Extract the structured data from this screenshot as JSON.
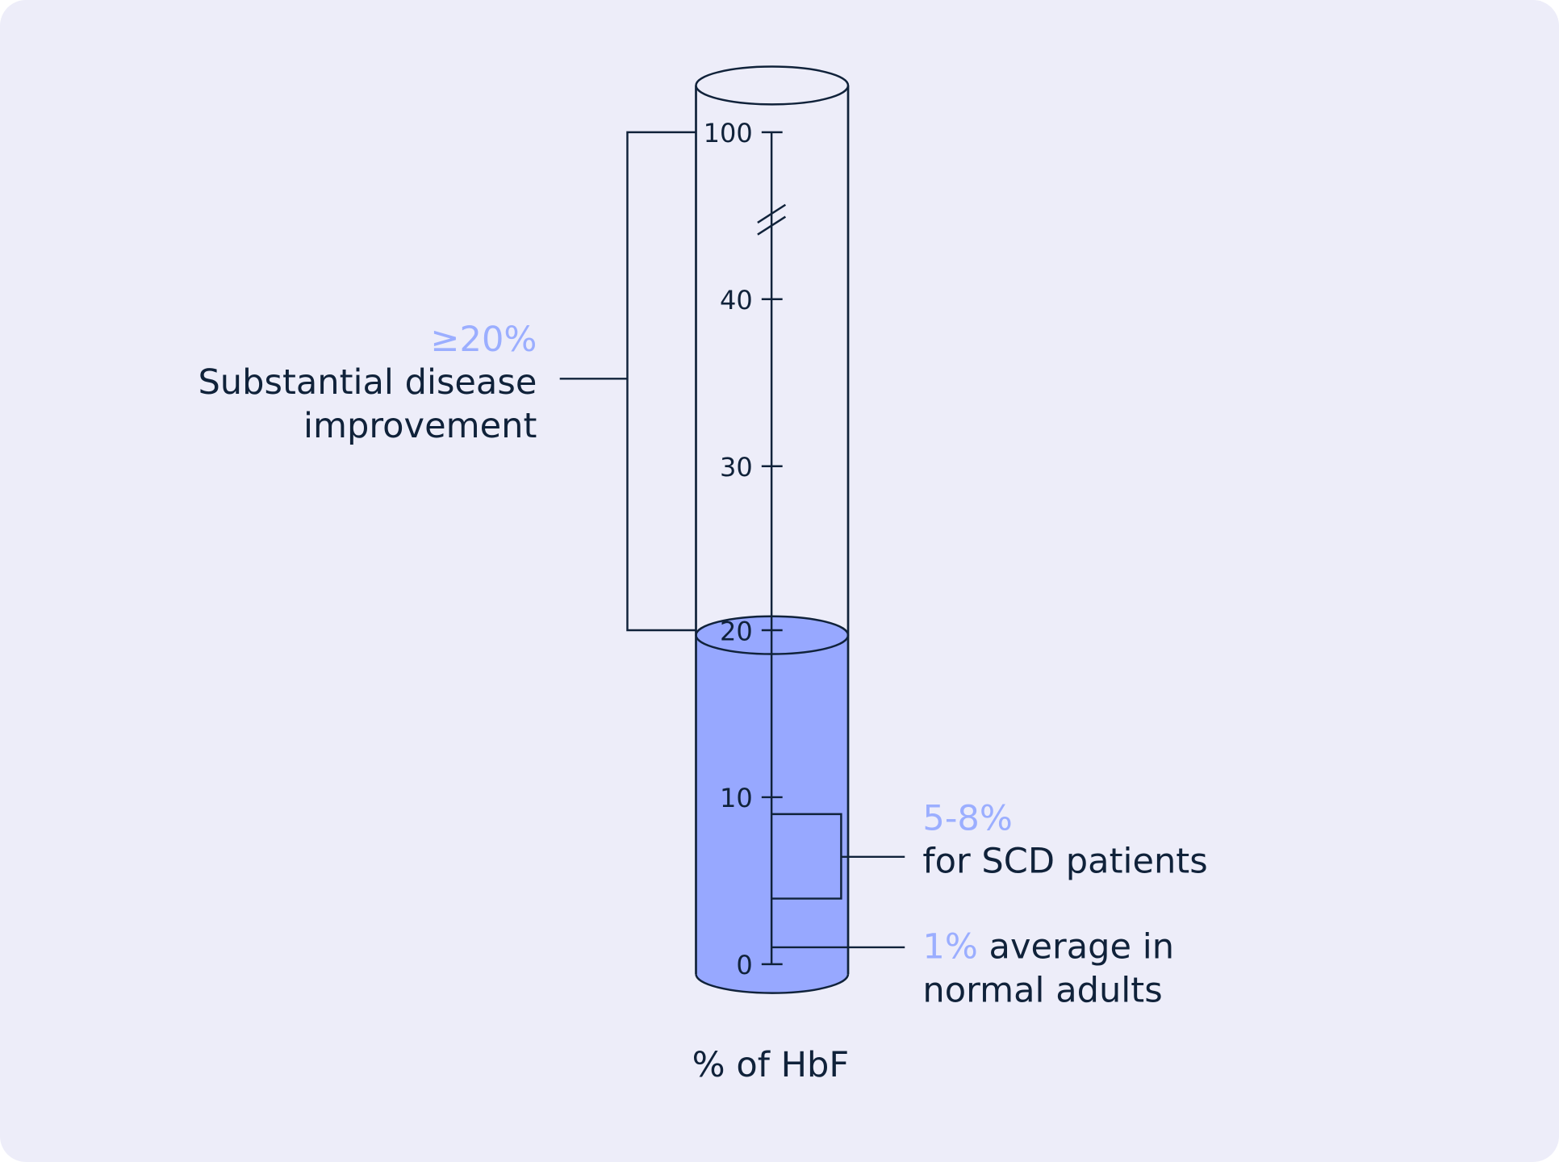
{
  "colors": {
    "background": "#EDEDF9",
    "ink": "#10223A",
    "accent_text": "#9BAEFF",
    "fill": "#97A8FF"
  },
  "cylinder": {
    "fill_level_percent": 20,
    "axis_break": true
  },
  "axis": {
    "title": "% of HbF",
    "ticks": [
      "100",
      "40",
      "30",
      "20",
      "10",
      "0"
    ]
  },
  "annotations": {
    "substantial": {
      "value": "≥20%",
      "value_symbol": ">",
      "value_number": "20%",
      "line1": "Substantial disease",
      "line2": "improvement"
    },
    "scd": {
      "value": "5-8%",
      "text": "for SCD patients"
    },
    "normal": {
      "value": "1%",
      "text_line1": " average in",
      "text_line2": "normal adults"
    }
  }
}
